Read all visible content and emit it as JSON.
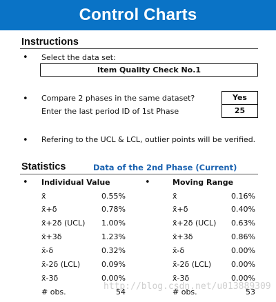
{
  "banner": {
    "title": "Control Charts"
  },
  "instructions": {
    "heading": "Instructions",
    "select_label": "Select the data set:",
    "dataset_value": "Item Quality Check  No.1",
    "compare_label": "Compare 2 phases in the same dataset?",
    "compare_value": "Yes",
    "last_period_label": "Enter the last period ID of 1st Phase",
    "last_period_value": "25",
    "outlier_note": "Refering to the UCL & LCL, outlier points will be verified."
  },
  "statistics": {
    "heading": "Statistics",
    "phase_title": "Data of the 2nd Phase (Current)",
    "individual": {
      "header": "Individual Value",
      "rows": [
        {
          "label": "x̄",
          "value": "0.55%"
        },
        {
          "label": "x̄+δ",
          "value": "0.78%"
        },
        {
          "label": "x̄+2δ (UCL)",
          "value": "1.00%"
        },
        {
          "label": "x̄+3δ",
          "value": "1.23%"
        },
        {
          "label": "x̄-δ",
          "value": "0.32%"
        },
        {
          "label": "x̄-2δ (LCL)",
          "value": "0.09%"
        },
        {
          "label": "x̄-3δ",
          "value": "0.00%"
        },
        {
          "label": "# obs.",
          "value": "54"
        }
      ]
    },
    "moving": {
      "header": "Moving Range",
      "rows": [
        {
          "label": "x̄",
          "value": "0.16%"
        },
        {
          "label": "x̄+δ",
          "value": "0.40%"
        },
        {
          "label": "x̄+2δ (UCL)",
          "value": "0.63%"
        },
        {
          "label": "x̄+3δ",
          "value": "0.86%"
        },
        {
          "label": "x̄-δ",
          "value": "0.00%"
        },
        {
          "label": "x̄-2δ (LCL)",
          "value": "0.00%"
        },
        {
          "label": "x̄-3δ",
          "value": "0.00%"
        },
        {
          "label": "# obs.",
          "value": "53"
        }
      ]
    }
  },
  "watermark": {
    "text": "http://blog.csdn.net/u013889309"
  }
}
